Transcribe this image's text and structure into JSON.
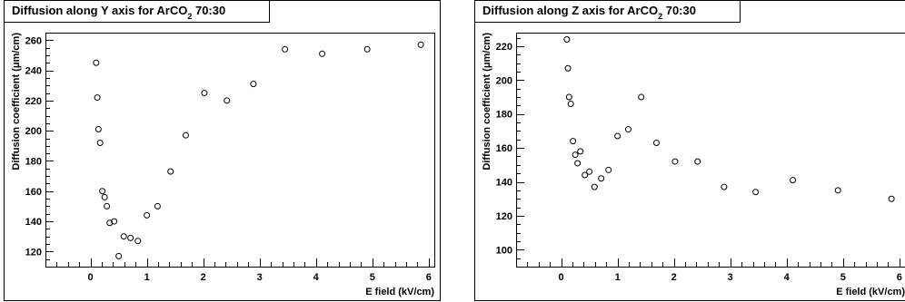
{
  "chart_data": [
    {
      "type": "scatter",
      "title": "Diffusion along Y axis for ArCO",
      "title_sub": "2",
      "title_rest": " 70:30",
      "xlabel": "E field (kV/cm)",
      "ylabel": "Diffusion coefficient (μm/cm)",
      "xlim": [
        -0.8,
        6.1
      ],
      "ylim": [
        110,
        265
      ],
      "xticks": [
        0,
        1,
        2,
        3,
        4,
        5,
        6
      ],
      "yticks": [
        120,
        140,
        160,
        180,
        200,
        220,
        240,
        260
      ],
      "grid": false,
      "marker": "open-circle",
      "points": [
        {
          "x": 0.1,
          "y": 245
        },
        {
          "x": 0.12,
          "y": 222
        },
        {
          "x": 0.14,
          "y": 201
        },
        {
          "x": 0.17,
          "y": 192
        },
        {
          "x": 0.21,
          "y": 160
        },
        {
          "x": 0.25,
          "y": 156
        },
        {
          "x": 0.29,
          "y": 150
        },
        {
          "x": 0.34,
          "y": 139
        },
        {
          "x": 0.42,
          "y": 140
        },
        {
          "x": 0.5,
          "y": 117
        },
        {
          "x": 0.59,
          "y": 130
        },
        {
          "x": 0.71,
          "y": 129
        },
        {
          "x": 0.84,
          "y": 127
        },
        {
          "x": 1.0,
          "y": 144
        },
        {
          "x": 1.19,
          "y": 150
        },
        {
          "x": 1.42,
          "y": 173
        },
        {
          "x": 1.69,
          "y": 197
        },
        {
          "x": 2.02,
          "y": 225
        },
        {
          "x": 2.42,
          "y": 220
        },
        {
          "x": 2.89,
          "y": 231
        },
        {
          "x": 3.45,
          "y": 254
        },
        {
          "x": 4.11,
          "y": 251
        },
        {
          "x": 4.91,
          "y": 254
        },
        {
          "x": 5.86,
          "y": 257
        }
      ]
    },
    {
      "type": "scatter",
      "title": "Diffusion along Z axis for ArCO",
      "title_sub": "2",
      "title_rest": " 70:30",
      "xlabel": "E field (kV/cm)",
      "ylabel": "Diffusion coefficient (μm/cm)",
      "xlim": [
        -0.8,
        6.1
      ],
      "ylim": [
        90,
        228
      ],
      "xticks": [
        0,
        1,
        2,
        3,
        4,
        5,
        6
      ],
      "yticks": [
        100,
        120,
        140,
        160,
        180,
        200,
        220
      ],
      "grid": false,
      "marker": "open-circle",
      "points": [
        {
          "x": 0.1,
          "y": 224
        },
        {
          "x": 0.12,
          "y": 207
        },
        {
          "x": 0.14,
          "y": 190
        },
        {
          "x": 0.17,
          "y": 186
        },
        {
          "x": 0.21,
          "y": 164
        },
        {
          "x": 0.25,
          "y": 156
        },
        {
          "x": 0.29,
          "y": 151
        },
        {
          "x": 0.34,
          "y": 158
        },
        {
          "x": 0.42,
          "y": 144
        },
        {
          "x": 0.5,
          "y": 146
        },
        {
          "x": 0.59,
          "y": 137
        },
        {
          "x": 0.71,
          "y": 142
        },
        {
          "x": 0.84,
          "y": 147
        },
        {
          "x": 1.0,
          "y": 167
        },
        {
          "x": 1.19,
          "y": 171
        },
        {
          "x": 1.42,
          "y": 190
        },
        {
          "x": 1.69,
          "y": 163
        },
        {
          "x": 2.02,
          "y": 152
        },
        {
          "x": 2.42,
          "y": 152
        },
        {
          "x": 2.89,
          "y": 137
        },
        {
          "x": 3.45,
          "y": 134
        },
        {
          "x": 4.11,
          "y": 141
        },
        {
          "x": 4.91,
          "y": 135
        },
        {
          "x": 5.86,
          "y": 130
        }
      ]
    }
  ]
}
